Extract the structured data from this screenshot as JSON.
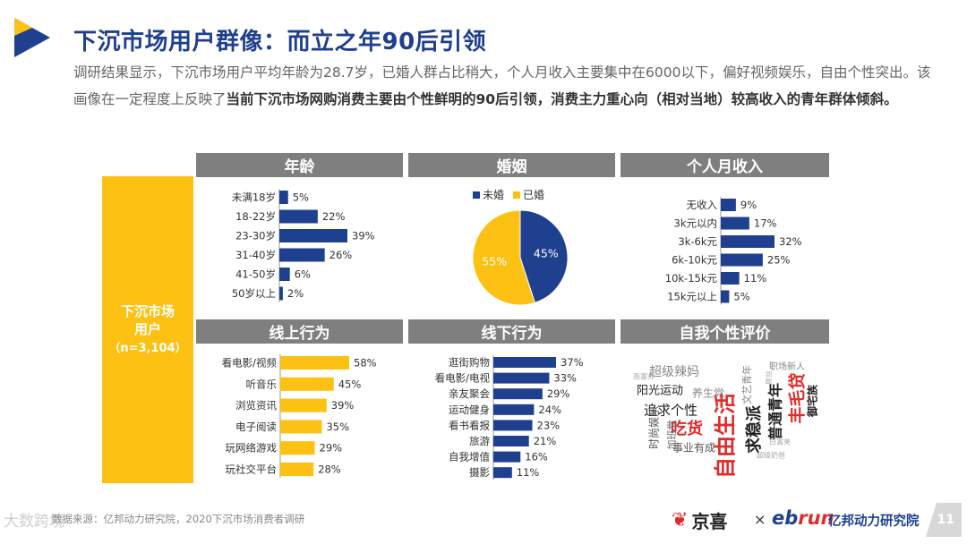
{
  "page": {
    "title": "下沉市场用户群像：而立之年90后引领",
    "intro_plain": "调研结果显示，下沉市场用户平均年龄为28.7岁，已婚人群占比稍大，个人月收入主要集中在6000以下，偏好视频娱乐，自由个性突出。该画像在一定程度上反映了",
    "intro_bold": "当前下沉市场网购消费主要由个性鲜明的90后引领，消费主力重心向（相对当地）较高收入的青年群体倾斜。",
    "side_label_1": "下沉市场",
    "side_label_2": "用户",
    "side_label_3": "（n=3,104）",
    "footer": "数据来源：亿邦动力研究院，2020下沉市场消费者调研",
    "watermark": "大数跨境",
    "brand_jx": "京喜",
    "brand_x": "×",
    "brand_eb_1": "eb",
    "brand_eb_2": "run",
    "brand_yb": "亿邦动力研究院",
    "page_number": "11"
  },
  "colors": {
    "navy": "#1f3f8f",
    "yellow": "#fcc113",
    "gray": "#7f7f7f",
    "red": "#e02b2b"
  },
  "chart_data": [
    {
      "id": "age",
      "type": "bar",
      "orientation": "horizontal",
      "title": "年龄",
      "categories": [
        "未满18岁",
        "18-22岁",
        "23-30岁",
        "31-40岁",
        "41-50岁",
        "50岁以上"
      ],
      "values": [
        5,
        22,
        39,
        26,
        6,
        2
      ],
      "unit": "%",
      "xlim": [
        0,
        39
      ]
    },
    {
      "id": "marriage",
      "type": "pie",
      "title": "婚姻",
      "legend": [
        "未婚",
        "已婚"
      ],
      "values": [
        45,
        55
      ],
      "unit": "%",
      "legend_position": "top"
    },
    {
      "id": "income",
      "type": "bar",
      "orientation": "horizontal",
      "title": "个人月收入",
      "categories": [
        "无收入",
        "3k元以内",
        "3k-6k元",
        "6k-10k元",
        "10k-15k元",
        "15k元以上"
      ],
      "values": [
        9,
        17,
        32,
        25,
        11,
        5
      ],
      "unit": "%",
      "xlim": [
        0,
        32
      ]
    },
    {
      "id": "online",
      "type": "bar",
      "orientation": "horizontal",
      "title": "线上行为",
      "categories": [
        "看电影/视频",
        "听音乐",
        "浏览资讯",
        "电子阅读",
        "玩网络游戏",
        "玩社交平台"
      ],
      "values": [
        58,
        45,
        39,
        35,
        29,
        28
      ],
      "unit": "%",
      "xlim": [
        0,
        58
      ]
    },
    {
      "id": "offline",
      "type": "bar",
      "orientation": "horizontal",
      "title": "线下行为",
      "categories": [
        "逛街购物",
        "看电影/电视",
        "亲友聚会",
        "运动健身",
        "看书看报",
        "旅游",
        "自我增值",
        "摄影"
      ],
      "values": [
        37,
        33,
        29,
        24,
        23,
        21,
        16,
        11
      ],
      "unit": "%",
      "xlim": [
        0,
        37
      ]
    },
    {
      "id": "wordcloud",
      "type": "wordcloud",
      "title": "自我个性评价",
      "words": [
        "自由生活",
        "丰毛贷",
        "吃货",
        "求稳派",
        "普通青年",
        "追求个性",
        "阳光运动",
        "超级辣妈",
        "养生党",
        "事业有成",
        "时尚娱乐",
        "加班党",
        "文艺青年",
        "职场新人",
        "御宅族",
        "高富帅",
        "白富美",
        "超级奶爸",
        "屌丝"
      ]
    }
  ]
}
